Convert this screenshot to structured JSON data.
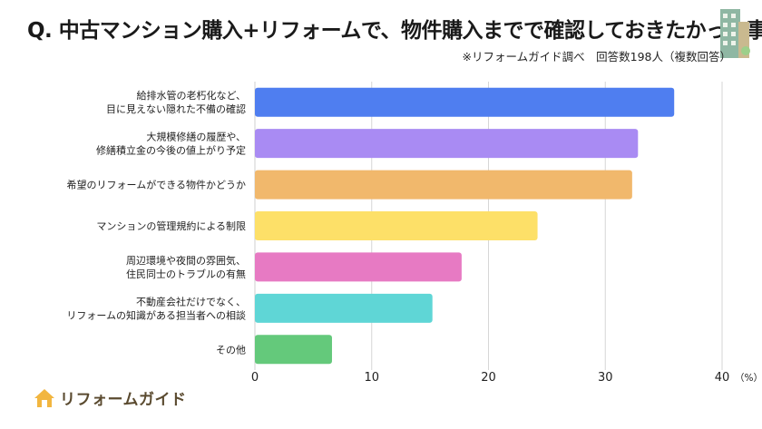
{
  "header": {
    "title": "Q. 中古マンション購入+リフォームで、物件購入までで確認しておきたかった事",
    "subtitle": "※リフォームガイド調べ　回答数198人（複数回答）"
  },
  "brand": {
    "logo_text": "リフォームガイド",
    "logo_icon": "house-icon",
    "building_icon": "building-icon"
  },
  "chart_data": {
    "type": "bar",
    "orientation": "horizontal",
    "categories": [
      [
        "給排水管の老朽化など、",
        "目に見えない隠れた不備の確認"
      ],
      [
        "大規模修繕の履歴や、",
        "修繕積立金の今後の値上がり予定"
      ],
      [
        "希望のリフォームができる物件かどうか"
      ],
      [
        "マンションの管理規約による制限"
      ],
      [
        "周辺環境や夜間の雰囲気、",
        "住民同士のトラブルの有無"
      ],
      [
        "不動産会社だけでなく、",
        "リフォームの知識がある担当者への相談"
      ],
      [
        "その他"
      ]
    ],
    "values": [
      35.9,
      32.8,
      32.3,
      24.2,
      17.7,
      15.2,
      6.6
    ],
    "colors": [
      "#4f7ef0",
      "#a98bf3",
      "#f1b86c",
      "#fde068",
      "#e77ac3",
      "#5fd6d6",
      "#64c97b"
    ],
    "xlim": [
      0,
      40
    ],
    "xticks": [
      0,
      10,
      20,
      30,
      40
    ],
    "xunit": "（%）",
    "grid": true
  }
}
